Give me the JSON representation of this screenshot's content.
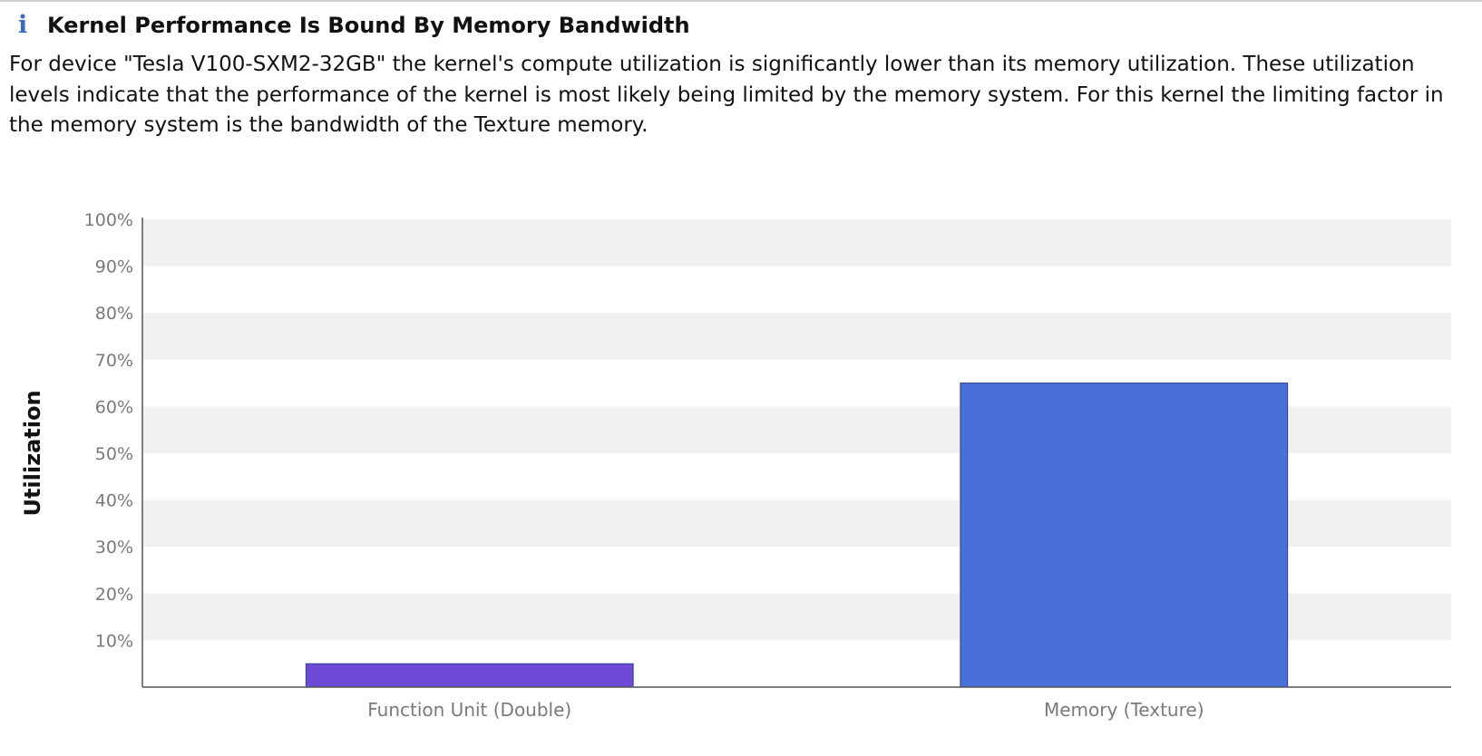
{
  "header": {
    "icon": "info-icon",
    "title": "Kernel Performance Is Bound By Memory Bandwidth"
  },
  "description": "For device \"Tesla V100-SXM2-32GB\" the kernel's compute utilization is significantly lower than its memory utilization. These utilization levels indicate that the performance of the kernel is most likely being limited by the memory system. For this kernel the limiting factor in the memory system is the bandwidth of the Texture memory.",
  "chart_data": {
    "type": "bar",
    "title": "",
    "xlabel": "",
    "ylabel": "Utilization",
    "ylim": [
      0,
      100
    ],
    "yticks": [
      "10%",
      "20%",
      "30%",
      "40%",
      "50%",
      "60%",
      "70%",
      "80%",
      "90%",
      "100%"
    ],
    "categories": [
      "Function Unit (Double)",
      "Memory (Texture)"
    ],
    "values": [
      5,
      65
    ],
    "colors": [
      "#6f4ad6",
      "#4870d8"
    ],
    "grid": true
  },
  "colors": {
    "band": "#f1f1f1",
    "axis": "#555555",
    "tick_label": "#7a7a7a",
    "bar_stroke": "#2a3f8a"
  }
}
